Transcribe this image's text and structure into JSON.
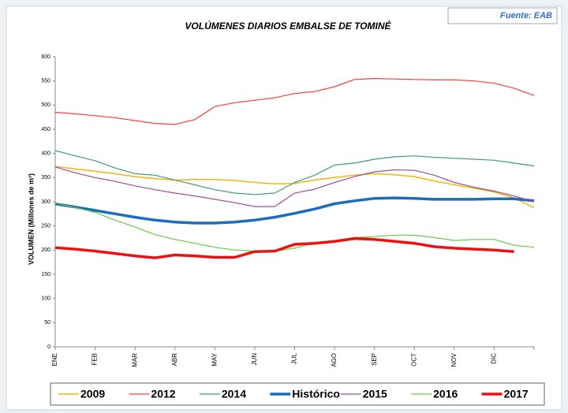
{
  "chart_data": {
    "type": "line",
    "title": "VOLÚMENES DIARIOS EMBALSE DE TOMINÉ",
    "source": "Fuente: EAB",
    "y_label": "VOLUMEN (Millones de m³)",
    "categories": [
      "ENE",
      null,
      "FEB",
      null,
      "MAR",
      null,
      "ABR",
      null,
      "MAY",
      null,
      "JUN",
      null,
      "JUL",
      null,
      "AGO",
      null,
      "SEP",
      null,
      "OCT",
      null,
      "NOV",
      null,
      "DIC",
      null,
      null
    ],
    "ylim": [
      0,
      600
    ],
    "yticks": [
      0,
      50,
      100,
      150,
      200,
      250,
      300,
      350,
      400,
      450,
      500,
      550,
      600
    ],
    "grid": false,
    "legend": "bottom",
    "series": [
      {
        "name": "2009",
        "color": "#f2b705",
        "line_width": 1.5,
        "values": [
          373,
          368,
          363,
          358,
          352,
          348,
          345,
          346,
          346,
          344,
          340,
          337,
          338,
          345,
          350,
          355,
          358,
          356,
          352,
          343,
          335,
          328,
          320,
          308,
          288
        ]
      },
      {
        "name": "2012",
        "color": "#ff3b3b",
        "line_width": 1.2,
        "values": [
          485,
          482,
          478,
          474,
          468,
          462,
          460,
          470,
          497,
          505,
          510,
          515,
          524,
          528,
          538,
          553,
          555,
          554,
          553,
          552,
          552,
          550,
          545,
          535,
          520
        ]
      },
      {
        "name": "2014",
        "color": "#3f9a7c",
        "line_width": 1.2,
        "values": [
          406,
          395,
          385,
          370,
          358,
          355,
          345,
          335,
          325,
          318,
          315,
          318,
          340,
          355,
          376,
          380,
          388,
          393,
          395,
          392,
          390,
          388,
          386,
          380,
          374
        ]
      },
      {
        "name": "Histórico",
        "color": "#1c6cc0",
        "line_width": 3.5,
        "values": [
          296,
          289,
          282,
          275,
          268,
          262,
          258,
          256,
          256,
          258,
          262,
          268,
          276,
          285,
          296,
          302,
          307,
          308,
          307,
          305,
          305,
          305,
          306,
          306,
          302
        ]
      },
      {
        "name": "2015",
        "color": "#9a4f9a",
        "line_width": 1.2,
        "values": [
          372,
          360,
          350,
          342,
          333,
          325,
          318,
          312,
          305,
          298,
          290,
          290,
          318,
          326,
          340,
          352,
          362,
          366,
          365,
          355,
          340,
          330,
          322,
          312,
          300
        ]
      },
      {
        "name": "2016",
        "color": "#66cc44",
        "line_width": 1.2,
        "values": [
          298,
          288,
          278,
          262,
          248,
          232,
          222,
          214,
          206,
          200,
          198,
          198,
          204,
          215,
          220,
          226,
          228,
          231,
          231,
          226,
          220,
          222,
          222,
          210,
          206
        ]
      },
      {
        "name": "2017",
        "color": "#ee1111",
        "line_width": 3.5,
        "values": [
          205,
          202,
          198,
          193,
          188,
          184,
          190,
          188,
          185,
          185,
          197,
          198,
          212,
          214,
          218,
          224,
          222,
          218,
          214,
          207,
          204,
          202,
          200,
          197,
          null
        ]
      }
    ]
  }
}
